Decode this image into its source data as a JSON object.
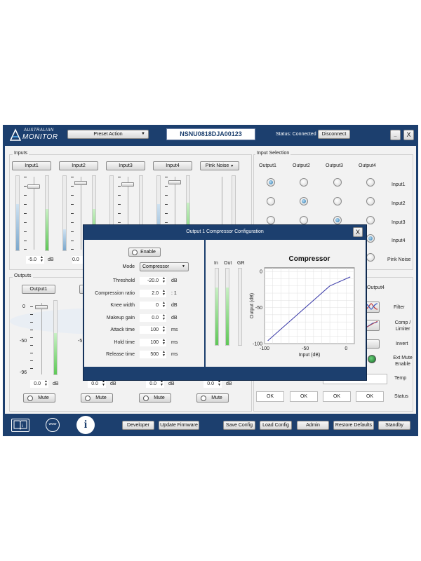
{
  "header": {
    "logo_line1": "AUSTRALIAN",
    "logo_line2": "MONITOR",
    "preset_label": "Preset Action",
    "serial": "NSNU0818DJA00123",
    "status": "Status: Connected",
    "disconnect_label": "Disconnect",
    "minimize_label": "_",
    "close_label": "X"
  },
  "inputs": {
    "title": "Inputs",
    "channels": [
      {
        "label": "Input1",
        "value": "-5.0",
        "unit": "dB"
      },
      {
        "label": "Input2",
        "value": "0.0"
      },
      {
        "label": "Input3"
      },
      {
        "label": "Input4"
      }
    ],
    "pink_noise_label": "Pink Noise"
  },
  "input_selection": {
    "title": "Input Selection",
    "columns": [
      "Output1",
      "Output2",
      "Output3",
      "Output4"
    ],
    "rows": [
      "Input1",
      "Input2",
      "Input3",
      "Input4",
      "Pink Noise"
    ],
    "selected": [
      [
        true,
        false,
        false,
        false
      ],
      [
        false,
        true,
        false,
        false
      ],
      [
        false,
        false,
        true,
        false
      ],
      [
        false,
        false,
        false,
        true
      ],
      [
        false,
        false,
        false,
        false
      ]
    ]
  },
  "outputs": {
    "title": "Outputs",
    "channel1_label": "Output1",
    "scale": [
      "0",
      "-50",
      "-96"
    ],
    "values": [
      "0.0",
      "0.0",
      "0.0",
      "0.0"
    ],
    "unit": "dB",
    "mute_label": "Mute",
    "right_header": "Output4",
    "right_rows": [
      "Filter",
      "Comp / Limiter",
      "Invert",
      "Ext Mute Enable",
      "Temp",
      "Status"
    ],
    "status_values": [
      "OK",
      "OK",
      "OK",
      "OK"
    ]
  },
  "footer": {
    "developer": "Developer",
    "update_firmware": "Update Firmware",
    "save_config": "Save Config",
    "load_config": "Load Config",
    "admin": "Admin",
    "restore_defaults": "Restore Defaults",
    "standby": "Standby",
    "www_label": "www",
    "info_label": "i"
  },
  "dialog": {
    "title": "Output 1 Compressor Configuration",
    "close_label": "X",
    "enable_label": "Enable",
    "mode_label": "Mode",
    "mode_value": "Compressor",
    "params": [
      {
        "label": "Threshold",
        "value": "-20.0",
        "unit": "dB"
      },
      {
        "label": "Compression ratio",
        "value": "2.0",
        "unit": ": 1"
      },
      {
        "label": "Knee width",
        "value": "0",
        "unit": "dB"
      },
      {
        "label": "Makeup gain",
        "value": "0.0",
        "unit": "dB"
      },
      {
        "label": "Attack time",
        "value": "100",
        "unit": "ms"
      },
      {
        "label": "Hold time",
        "value": "100",
        "unit": "ms"
      },
      {
        "label": "Release time",
        "value": "500",
        "unit": "ms"
      }
    ],
    "meters": {
      "in_label": "In",
      "out_label": "Out",
      "gr_label": "GR",
      "in_level": 0.75,
      "out_level": 0.75,
      "gr_level": 0
    }
  },
  "chart_data": {
    "type": "line",
    "title": "Compressor",
    "xlabel": "Input (dB)",
    "ylabel": "Output (dB)",
    "xlim": [
      -100,
      10
    ],
    "ylim": [
      -100,
      5
    ],
    "xticks": [
      -100,
      -50,
      0
    ],
    "yticks": [
      0,
      -50,
      -100
    ],
    "grid": true,
    "x": [
      -96,
      -20,
      5
    ],
    "y": [
      -96,
      -20,
      -7.5
    ]
  },
  "colors": {
    "frame": "#1c3f6e",
    "panel": "#f2f2f2",
    "curve": "#3a3aa8",
    "accent": "#1e6fa8"
  }
}
